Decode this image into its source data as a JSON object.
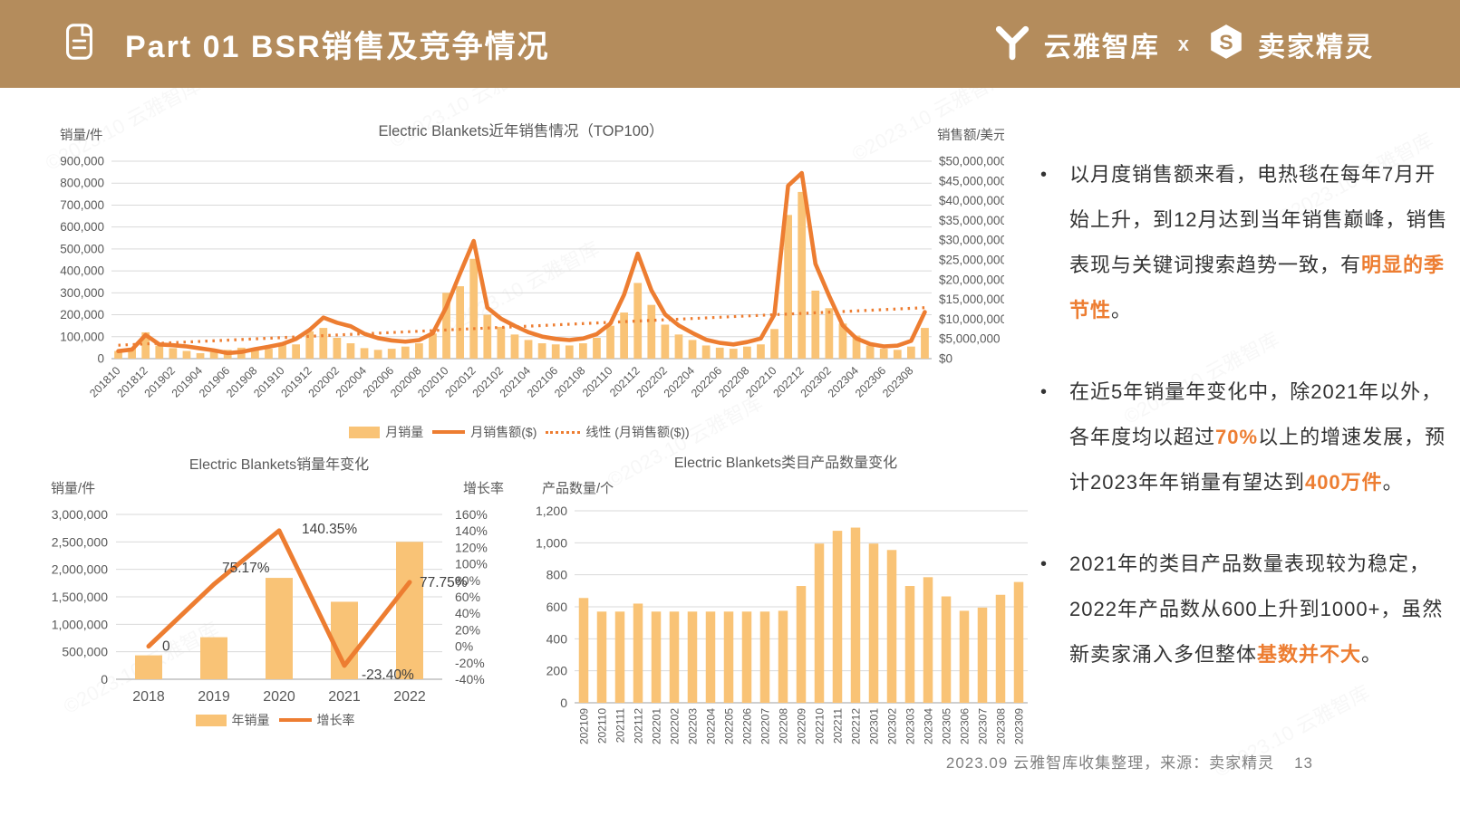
{
  "header": {
    "title": "Part 01  BSR销售及竞争情况",
    "brand_left": "云雅智库",
    "brand_separator": "x",
    "brand_right": "卖家精灵",
    "icons": [
      "document-icon",
      "yunya-logo-icon",
      "sellersprite-logo-icon"
    ]
  },
  "colors": {
    "header_bg": "#b48c5c",
    "bar_fill": "#f9c376",
    "line_stroke": "#ed7d31",
    "grid": "#d9d9d9",
    "axis_line": "#bfbfbf",
    "axis_text": "#595959",
    "body_text": "#333333",
    "highlight": "#ed7d31",
    "footer_text": "#808080"
  },
  "watermark": "©2023.10 云雅智库",
  "chart_data": [
    {
      "id": "monthly-sales-chart",
      "type": "bar+line",
      "title": "Electric Blankets近年销售情况（TOP100）",
      "left_axis": {
        "label": "销量/件",
        "min": 0,
        "max": 900000,
        "step": 100000
      },
      "right_axis": {
        "label": "销售额/美元",
        "min": 0,
        "max": 50000000,
        "step": 5000000,
        "prefix": "$"
      },
      "x_label_every": 2,
      "categories": [
        "201810",
        "201811",
        "201812",
        "201901",
        "201902",
        "201903",
        "201904",
        "201905",
        "201906",
        "201907",
        "201908",
        "201909",
        "201910",
        "201911",
        "201912",
        "202001",
        "202002",
        "202003",
        "202004",
        "202005",
        "202006",
        "202007",
        "202008",
        "202009",
        "202010",
        "202011",
        "202012",
        "202101",
        "202102",
        "202103",
        "202104",
        "202105",
        "202106",
        "202107",
        "202108",
        "202109",
        "202110",
        "202111",
        "202112",
        "202201",
        "202202",
        "202203",
        "202204",
        "202205",
        "202206",
        "202207",
        "202208",
        "202209",
        "202210",
        "202211",
        "202212",
        "202301",
        "202302",
        "202303",
        "202304",
        "202305",
        "202306",
        "202307",
        "202308",
        "202309"
      ],
      "series": [
        {
          "name": "月销量",
          "type": "bar",
          "axis": "left",
          "values": [
            35000,
            50000,
            120000,
            60000,
            48000,
            35000,
            25000,
            30000,
            40000,
            50000,
            40000,
            45000,
            70000,
            65000,
            125000,
            140000,
            95000,
            70000,
            48000,
            40000,
            45000,
            55000,
            70000,
            115000,
            300000,
            330000,
            455000,
            200000,
            145000,
            110000,
            85000,
            70000,
            65000,
            60000,
            70000,
            95000,
            150000,
            210000,
            345000,
            245000,
            155000,
            110000,
            85000,
            60000,
            50000,
            45000,
            55000,
            65000,
            135000,
            655000,
            760000,
            310000,
            230000,
            160000,
            105000,
            60000,
            45000,
            40000,
            55000,
            140000
          ]
        },
        {
          "name": "月销售额($)",
          "type": "line",
          "axis": "right",
          "values": [
            1900000,
            2300000,
            6000000,
            3600000,
            3400000,
            3100000,
            2600000,
            2100000,
            1400000,
            1700000,
            2400000,
            3000000,
            3700000,
            5000000,
            7300000,
            10400000,
            9100000,
            8200000,
            6300000,
            5200000,
            4600000,
            4300000,
            4700000,
            6400000,
            13100000,
            21600000,
            29800000,
            12900000,
            10100000,
            8300000,
            6700000,
            5600000,
            5000000,
            4700000,
            5100000,
            6200000,
            8900000,
            16200000,
            26600000,
            17300000,
            11200000,
            8400000,
            6500000,
            4800000,
            4000000,
            3600000,
            4200000,
            5100000,
            11200000,
            43800000,
            47000000,
            24000000,
            15900000,
            8400000,
            5100000,
            3700000,
            3100000,
            3300000,
            4500000,
            11800000
          ]
        },
        {
          "name": "线性 (月销售额($))",
          "type": "trend",
          "axis": "right",
          "values": [
            3400000,
            12900000
          ]
        }
      ],
      "legend": [
        "月销量",
        "月销售额($)",
        "线性 (月销售额($))"
      ]
    },
    {
      "id": "yearly-sales-chart",
      "type": "bar+line",
      "title": "Electric Blankets销量年变化",
      "left_axis": {
        "label": "销量/件",
        "min": 0,
        "max": 3000000,
        "step": 500000
      },
      "right_axis": {
        "label": "增长率",
        "min": -40,
        "max": 160,
        "step": 20,
        "suffix": "%"
      },
      "categories": [
        "2018",
        "2019",
        "2020",
        "2021",
        "2022"
      ],
      "series": [
        {
          "name": "年销量",
          "type": "bar",
          "axis": "left",
          "values": [
            435000,
            765000,
            1845000,
            1410000,
            2500000
          ]
        },
        {
          "name": "增长率",
          "type": "line",
          "axis": "right",
          "values": [
            0,
            75.17,
            140.35,
            -23.4,
            77.75
          ],
          "point_labels": [
            "0",
            "75.17%",
            "140.35%",
            "-23.40%",
            "77.75%"
          ]
        }
      ],
      "legend": [
        "年销量",
        "增长率"
      ]
    },
    {
      "id": "product-count-chart",
      "type": "bar",
      "title": "Electric Blankets类目产品数量变化",
      "y_axis": {
        "label": "产品数量/个",
        "min": 0,
        "max": 1200,
        "step": 200
      },
      "categories": [
        "202109",
        "202110",
        "202111",
        "202112",
        "202201",
        "202202",
        "202203",
        "202204",
        "202205",
        "202206",
        "202207",
        "202208",
        "202209",
        "202210",
        "202211",
        "202212",
        "202301",
        "202302",
        "202303",
        "202304",
        "202305",
        "202306",
        "202307",
        "202308",
        "202309"
      ],
      "values": [
        655,
        570,
        570,
        620,
        570,
        570,
        570,
        570,
        570,
        570,
        570,
        575,
        730,
        995,
        1075,
        1095,
        995,
        955,
        730,
        785,
        665,
        575,
        595,
        675,
        755
      ]
    }
  ],
  "insights": {
    "bullets": [
      {
        "segments": [
          {
            "text": "以月度销售额来看，电热毯在每年7月开始上升，到12月达到当年销售巅峰，销售表现与关键词搜索趋势一致，有",
            "highlight": false
          },
          {
            "text": "明显的季节性",
            "highlight": true
          },
          {
            "text": "。",
            "highlight": false
          }
        ]
      },
      {
        "segments": [
          {
            "text": "在近5年销量年变化中，除2021年以外，各年度均以超过",
            "highlight": false
          },
          {
            "text": "70%",
            "highlight": true
          },
          {
            "text": "以上的增速发展，预计2023年年销量有望达到",
            "highlight": false
          },
          {
            "text": "400万件",
            "highlight": true
          },
          {
            "text": "。",
            "highlight": false
          }
        ]
      },
      {
        "segments": [
          {
            "text": "2021年的类目产品数量表现较为稳定，2022年产品数从600上升到1000+，虽然新卖家涌入多但整体",
            "highlight": false
          },
          {
            "text": "基数并不大",
            "highlight": true
          },
          {
            "text": "。",
            "highlight": false
          }
        ]
      }
    ]
  },
  "footer": {
    "text": "2023.09 云雅智库收集整理，来源：卖家精灵",
    "page": "13"
  }
}
